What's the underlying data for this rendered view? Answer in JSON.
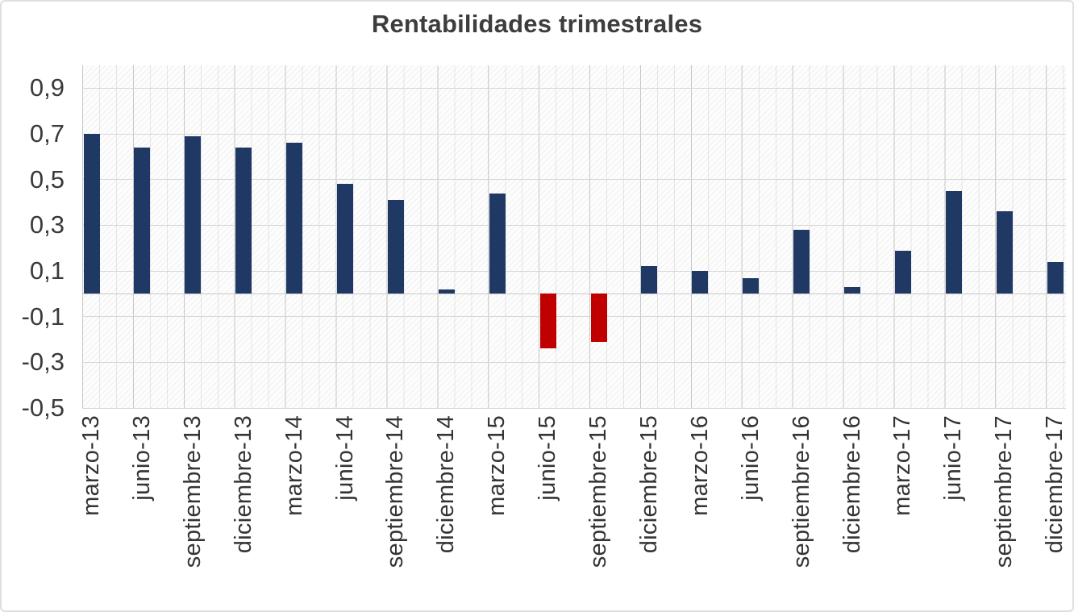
{
  "title": "Rentabilidades trimestrales",
  "chart_data": {
    "type": "bar",
    "title": "Rentabilidades trimestrales",
    "xlabel": "",
    "ylabel": "",
    "categories": [
      "marzo-13",
      "junio-13",
      "septiembre-13",
      "diciembre-13",
      "marzo-14",
      "junio-14",
      "septiembre-14",
      "diciembre-14",
      "marzo-15",
      "junio-15",
      "septiembre-15",
      "diciembre-15",
      "marzo-16",
      "junio-16",
      "septiembre-16",
      "diciembre-16",
      "marzo-17",
      "junio-17",
      "septiembre-17",
      "diciembre-17"
    ],
    "values": [
      0.7,
      0.64,
      0.69,
      0.64,
      0.66,
      0.48,
      0.41,
      0.02,
      0.44,
      -0.24,
      -0.21,
      0.12,
      0.1,
      0.07,
      0.28,
      0.03,
      0.19,
      0.45,
      0.36,
      0.14
    ],
    "y_ticks": [
      {
        "label": "0,9",
        "value": 0.9
      },
      {
        "label": "0,7",
        "value": 0.7
      },
      {
        "label": "0,5",
        "value": 0.5
      },
      {
        "label": "0,3",
        "value": 0.3
      },
      {
        "label": "0,1",
        "value": 0.1
      },
      {
        "label": "-0,1",
        "value": -0.1
      },
      {
        "label": "-0,3",
        "value": -0.3
      },
      {
        "label": "-0,5",
        "value": -0.5
      }
    ],
    "ylim": [
      -0.5,
      1.0
    ],
    "grid": true,
    "legend": "none",
    "decimal_separator": "comma",
    "colors": {
      "positive_bar": "#1f3864",
      "negative_bar": "#c00000",
      "gridline": "#d7d7d7",
      "text": "#3a3a3a"
    }
  }
}
